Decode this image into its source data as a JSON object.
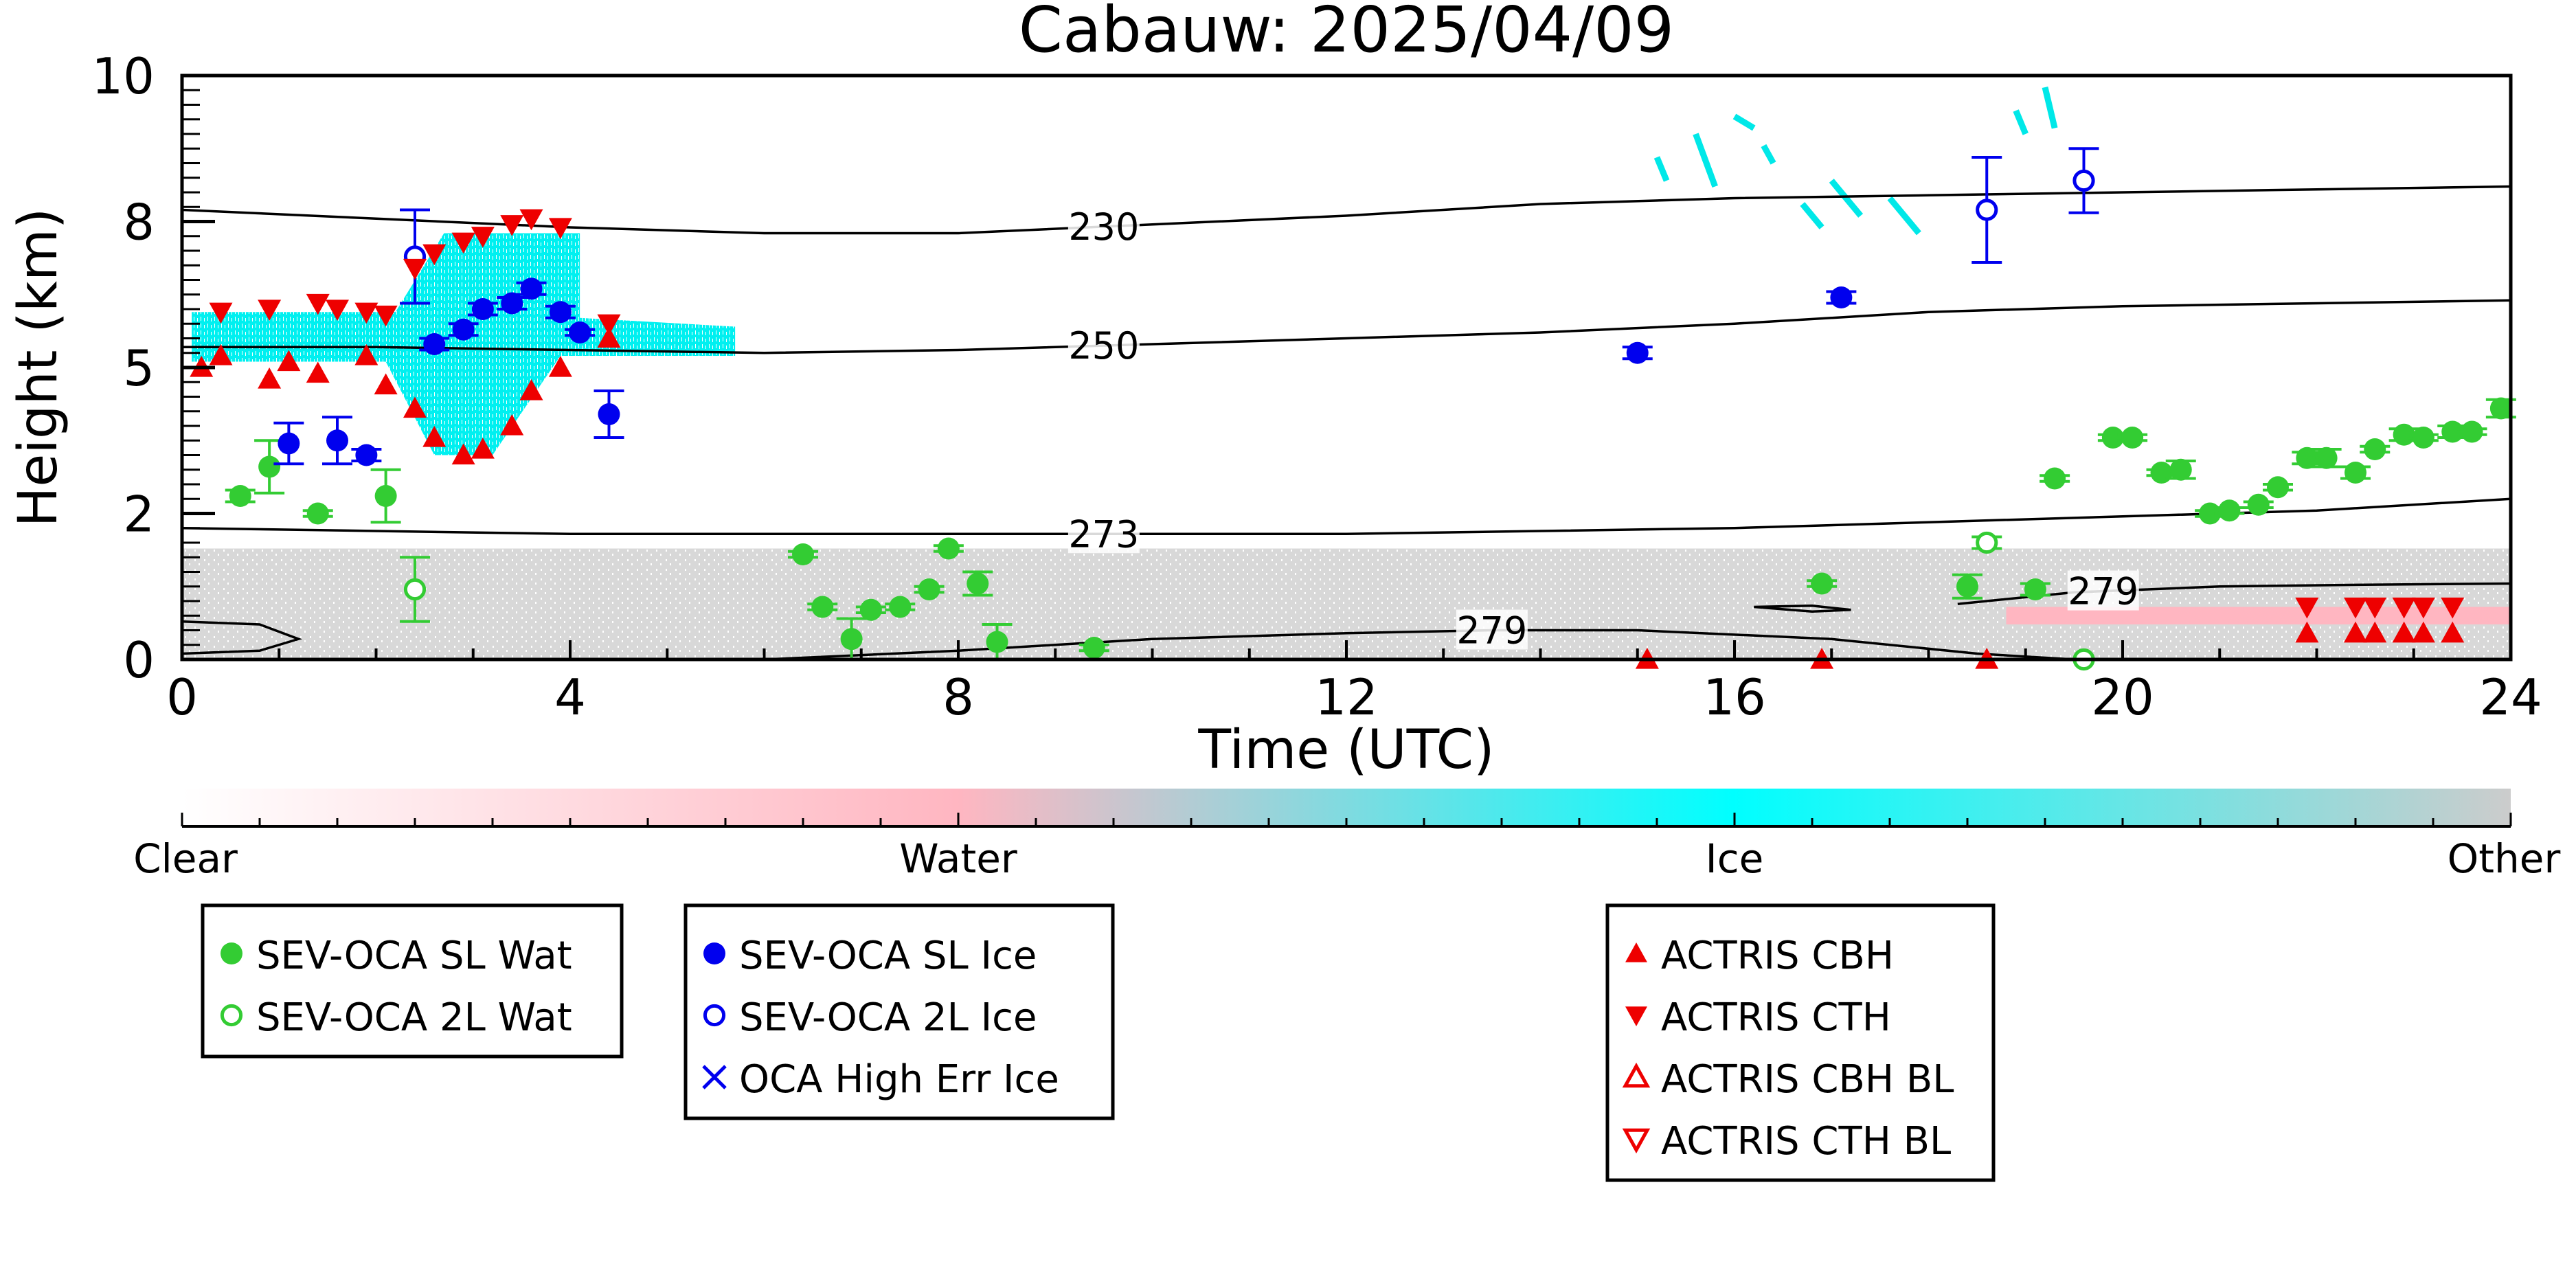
{
  "chart_data": {
    "type": "scatter",
    "title": "Cabauw: 2025/04/09",
    "xlabel": "Time (UTC)",
    "ylabel": "Height (km)",
    "xlim": [
      0,
      24
    ],
    "ylim": [
      0,
      10
    ],
    "x_ticks": [
      "0",
      "4",
      "8",
      "12",
      "16",
      "20",
      "24"
    ],
    "y_ticks": [
      {
        "value": 0,
        "label": "0"
      },
      {
        "value": 2.5,
        "label": "2"
      },
      {
        "value": 5,
        "label": "5"
      },
      {
        "value": 7.5,
        "label": "8"
      },
      {
        "value": 10,
        "label": "10"
      }
    ],
    "colors": {
      "sl_wat": "#33cc33",
      "sl_ice": "#0000ee",
      "actris": "#ee0000",
      "clear": "#ffffff",
      "water": "#ffb6c1",
      "ice": "#00ffff",
      "other": "#cccccc"
    },
    "background": {
      "ice_cloud_1": {
        "x_range": [
          0.1,
          5.7
        ],
        "y_range": [
          3.5,
          7.3
        ]
      },
      "ice_cloud_2": {
        "x_range": [
          15.1,
          19.3
        ],
        "y_range": [
          7.0,
          10.0
        ]
      },
      "other_layer": {
        "x_range": [
          0,
          24
        ],
        "top_km": 1.9
      },
      "water_layer": {
        "x_range": [
          18.8,
          24
        ],
        "y_range": [
          0.6,
          0.9
        ]
      }
    },
    "contours": [
      {
        "label": "230",
        "label_x": 9.5,
        "points": [
          [
            0,
            7.7
          ],
          [
            2,
            7.55
          ],
          [
            4,
            7.4
          ],
          [
            6,
            7.3
          ],
          [
            8,
            7.3
          ],
          [
            10,
            7.45
          ],
          [
            12,
            7.6
          ],
          [
            14,
            7.8
          ],
          [
            16,
            7.9
          ],
          [
            18,
            7.95
          ],
          [
            20,
            8.0
          ],
          [
            22,
            8.05
          ],
          [
            24,
            8.1
          ]
        ]
      },
      {
        "label": "250",
        "label_x": 9.5,
        "points": [
          [
            0,
            5.35
          ],
          [
            2,
            5.35
          ],
          [
            4,
            5.3
          ],
          [
            6,
            5.25
          ],
          [
            8,
            5.3
          ],
          [
            10,
            5.4
          ],
          [
            12,
            5.5
          ],
          [
            14,
            5.6
          ],
          [
            16,
            5.75
          ],
          [
            18,
            5.95
          ],
          [
            20,
            6.05
          ],
          [
            22,
            6.1
          ],
          [
            24,
            6.15
          ]
        ]
      },
      {
        "label": "273",
        "label_x": 9.5,
        "points": [
          [
            0,
            2.25
          ],
          [
            2,
            2.2
          ],
          [
            4,
            2.15
          ],
          [
            6,
            2.15
          ],
          [
            8,
            2.15
          ],
          [
            10,
            2.15
          ],
          [
            12,
            2.15
          ],
          [
            14,
            2.2
          ],
          [
            16,
            2.25
          ],
          [
            18,
            2.35
          ],
          [
            20,
            2.45
          ],
          [
            22,
            2.55
          ],
          [
            24,
            2.75
          ]
        ]
      },
      {
        "label": "279",
        "label_x": 13.5,
        "points": [
          [
            6,
            0.0
          ],
          [
            8,
            0.15
          ],
          [
            10,
            0.35
          ],
          [
            12,
            0.45
          ],
          [
            13.5,
            0.5
          ],
          [
            15,
            0.5
          ],
          [
            17,
            0.35
          ],
          [
            18.5,
            0.1
          ],
          [
            19.5,
            0.0
          ]
        ]
      },
      {
        "label": "279",
        "label_x": 19.8,
        "points": [
          [
            18.3,
            0.95
          ],
          [
            19.5,
            1.15
          ],
          [
            21,
            1.25
          ],
          [
            22.5,
            1.28
          ],
          [
            24,
            1.3
          ]
        ]
      },
      {
        "label": "",
        "label_x": null,
        "points": [
          [
            0,
            0.65
          ],
          [
            0.8,
            0.6
          ],
          [
            1.2,
            0.35
          ],
          [
            0.8,
            0.15
          ],
          [
            0,
            0.1
          ]
        ]
      },
      {
        "label": "",
        "label_x": null,
        "points": [
          [
            16.2,
            0.9
          ],
          [
            16.8,
            0.82
          ],
          [
            17.2,
            0.85
          ],
          [
            16.8,
            0.92
          ],
          [
            16.2,
            0.9
          ]
        ]
      }
    ],
    "series": [
      {
        "name": "SEV-OCA SL Wat",
        "marker": "circle-filled",
        "color": "#33cc33",
        "points": [
          {
            "x": 0.6,
            "y": 2.8,
            "err": 0.1
          },
          {
            "x": 0.9,
            "y": 3.3,
            "err": 0.45
          },
          {
            "x": 1.4,
            "y": 2.5,
            "err": 0.05
          },
          {
            "x": 2.1,
            "y": 2.8,
            "err": 0.45
          },
          {
            "x": 6.4,
            "y": 1.8,
            "err": 0.05
          },
          {
            "x": 6.6,
            "y": 0.9,
            "err": 0.05
          },
          {
            "x": 6.9,
            "y": 0.35,
            "err": 0.35
          },
          {
            "x": 7.1,
            "y": 0.85,
            "err": 0.05
          },
          {
            "x": 7.4,
            "y": 0.9,
            "err": 0.05
          },
          {
            "x": 7.7,
            "y": 1.2,
            "err": 0.05
          },
          {
            "x": 7.9,
            "y": 1.9,
            "err": 0.05
          },
          {
            "x": 8.2,
            "y": 1.3,
            "err": 0.2
          },
          {
            "x": 8.4,
            "y": 0.3,
            "err": 0.3
          },
          {
            "x": 9.4,
            "y": 0.2,
            "err": 0.05
          },
          {
            "x": 16.9,
            "y": 1.3,
            "err": 0.05
          },
          {
            "x": 18.4,
            "y": 1.25,
            "err": 0.2
          },
          {
            "x": 19.1,
            "y": 1.2,
            "err": 0.1
          },
          {
            "x": 19.3,
            "y": 3.1,
            "err": 0.05
          },
          {
            "x": 19.9,
            "y": 3.8,
            "err": 0.05
          },
          {
            "x": 20.1,
            "y": 3.8,
            "err": 0.05
          },
          {
            "x": 20.4,
            "y": 3.2,
            "err": 0.05
          },
          {
            "x": 20.6,
            "y": 3.25,
            "err": 0.15
          },
          {
            "x": 20.9,
            "y": 2.5,
            "err": 0.05
          },
          {
            "x": 21.1,
            "y": 2.55,
            "err": 0.05
          },
          {
            "x": 21.4,
            "y": 2.65,
            "err": 0.05
          },
          {
            "x": 21.6,
            "y": 2.95,
            "err": 0.05
          },
          {
            "x": 21.9,
            "y": 3.45,
            "err": 0.1
          },
          {
            "x": 22.1,
            "y": 3.45,
            "err": 0.15
          },
          {
            "x": 22.4,
            "y": 3.2,
            "err": 0.1
          },
          {
            "x": 22.6,
            "y": 3.6,
            "err": 0.05
          },
          {
            "x": 22.9,
            "y": 3.85,
            "err": 0.1
          },
          {
            "x": 23.1,
            "y": 3.8,
            "err": 0.05
          },
          {
            "x": 23.4,
            "y": 3.9,
            "err": 0.1
          },
          {
            "x": 23.6,
            "y": 3.9,
            "err": 0.05
          },
          {
            "x": 23.9,
            "y": 4.3,
            "err": 0.15
          }
        ]
      },
      {
        "name": "SEV-OCA 2L Wat",
        "marker": "circle-open",
        "color": "#33cc33",
        "points": [
          {
            "x": 2.4,
            "y": 1.2,
            "err": 0.55
          },
          {
            "x": 18.6,
            "y": 2.0,
            "err": 0.1
          },
          {
            "x": 19.6,
            "y": 0.0,
            "err": 0.0
          }
        ]
      },
      {
        "name": "SEV-OCA SL Ice",
        "marker": "circle-filled",
        "color": "#0000ee",
        "points": [
          {
            "x": 1.1,
            "y": 3.7,
            "err": 0.35
          },
          {
            "x": 1.6,
            "y": 3.75,
            "err": 0.4
          },
          {
            "x": 1.9,
            "y": 3.5,
            "err": 0.1
          },
          {
            "x": 2.6,
            "y": 5.4,
            "err": 0.1
          },
          {
            "x": 2.9,
            "y": 5.65,
            "err": 0.1
          },
          {
            "x": 3.1,
            "y": 6.0,
            "err": 0.1
          },
          {
            "x": 3.4,
            "y": 6.1,
            "err": 0.1
          },
          {
            "x": 3.6,
            "y": 6.35,
            "err": 0.1
          },
          {
            "x": 3.9,
            "y": 5.95,
            "err": 0.1
          },
          {
            "x": 4.1,
            "y": 5.6,
            "err": 0.05
          },
          {
            "x": 4.4,
            "y": 4.2,
            "err": 0.4
          },
          {
            "x": 15.0,
            "y": 5.25,
            "err": 0.1
          },
          {
            "x": 17.1,
            "y": 6.2,
            "err": 0.1
          }
        ]
      },
      {
        "name": "SEV-OCA 2L Ice",
        "marker": "circle-open",
        "color": "#0000ee",
        "points": [
          {
            "x": 2.4,
            "y": 6.9,
            "err": 0.8
          },
          {
            "x": 18.6,
            "y": 7.7,
            "err": 0.9
          },
          {
            "x": 19.6,
            "y": 8.2,
            "err": 0.55
          }
        ]
      },
      {
        "name": "OCA High Err Ice",
        "marker": "x",
        "color": "#0000ee",
        "points": []
      },
      {
        "name": "ACTRIS CBH",
        "marker": "triangle-up",
        "color": "#ee0000",
        "points": [
          {
            "x": 0.2,
            "y": 5.0
          },
          {
            "x": 0.4,
            "y": 5.2
          },
          {
            "x": 0.9,
            "y": 4.8
          },
          {
            "x": 1.1,
            "y": 5.1
          },
          {
            "x": 1.4,
            "y": 4.9
          },
          {
            "x": 1.9,
            "y": 5.2
          },
          {
            "x": 2.1,
            "y": 4.7
          },
          {
            "x": 2.4,
            "y": 4.3
          },
          {
            "x": 2.6,
            "y": 3.8
          },
          {
            "x": 2.9,
            "y": 3.5
          },
          {
            "x": 3.1,
            "y": 3.6
          },
          {
            "x": 3.4,
            "y": 4.0
          },
          {
            "x": 3.6,
            "y": 4.6
          },
          {
            "x": 3.9,
            "y": 5.0
          },
          {
            "x": 4.4,
            "y": 5.5
          },
          {
            "x": 15.1,
            "y": 0.0
          },
          {
            "x": 16.9,
            "y": 0.0
          },
          {
            "x": 18.6,
            "y": 0.0
          },
          {
            "x": 21.9,
            "y": 0.45
          },
          {
            "x": 22.4,
            "y": 0.45
          },
          {
            "x": 22.6,
            "y": 0.45
          },
          {
            "x": 22.9,
            "y": 0.45
          },
          {
            "x": 23.1,
            "y": 0.45
          },
          {
            "x": 23.4,
            "y": 0.45
          }
        ]
      },
      {
        "name": "ACTRIS CTH",
        "marker": "triangle-down",
        "color": "#ee0000",
        "points": [
          {
            "x": 0.4,
            "y": 5.95
          },
          {
            "x": 0.9,
            "y": 6.0
          },
          {
            "x": 1.4,
            "y": 6.1
          },
          {
            "x": 1.6,
            "y": 6.0
          },
          {
            "x": 1.9,
            "y": 5.95
          },
          {
            "x": 2.1,
            "y": 5.9
          },
          {
            "x": 2.4,
            "y": 6.7
          },
          {
            "x": 2.6,
            "y": 6.95
          },
          {
            "x": 2.9,
            "y": 7.15
          },
          {
            "x": 3.1,
            "y": 7.25
          },
          {
            "x": 3.4,
            "y": 7.45
          },
          {
            "x": 3.6,
            "y": 7.55
          },
          {
            "x": 3.9,
            "y": 7.4
          },
          {
            "x": 4.4,
            "y": 5.75
          },
          {
            "x": 21.9,
            "y": 0.9
          },
          {
            "x": 22.4,
            "y": 0.9
          },
          {
            "x": 22.6,
            "y": 0.9
          },
          {
            "x": 22.9,
            "y": 0.9
          },
          {
            "x": 23.1,
            "y": 0.9
          },
          {
            "x": 23.4,
            "y": 0.9
          }
        ]
      },
      {
        "name": "ACTRIS CBH BL",
        "marker": "triangle-up-open",
        "color": "#ee0000",
        "points": []
      },
      {
        "name": "ACTRIS CTH BL",
        "marker": "triangle-down-open",
        "color": "#ee0000",
        "points": []
      }
    ],
    "colorbar": {
      "labels": [
        "Clear",
        "Water",
        "Ice",
        "Other"
      ],
      "stops": [
        "#ffffff",
        "#ffb6c1",
        "#00ffff",
        "#cccccc"
      ]
    },
    "legend_groups": [
      {
        "entries": [
          {
            "label": "SEV-OCA SL Wat",
            "marker": "circle-filled",
            "color": "#33cc33"
          },
          {
            "label": "SEV-OCA 2L Wat",
            "marker": "circle-open",
            "color": "#33cc33"
          }
        ]
      },
      {
        "entries": [
          {
            "label": "SEV-OCA SL Ice",
            "marker": "circle-filled",
            "color": "#0000ee"
          },
          {
            "label": "SEV-OCA 2L Ice",
            "marker": "circle-open",
            "color": "#0000ee"
          },
          {
            "label": "OCA High Err Ice",
            "marker": "x",
            "color": "#0000ee"
          }
        ]
      },
      {
        "entries": [
          {
            "label": "ACTRIS CBH",
            "marker": "triangle-up",
            "color": "#ee0000"
          },
          {
            "label": "ACTRIS CTH",
            "marker": "triangle-down",
            "color": "#ee0000"
          },
          {
            "label": "ACTRIS CBH BL",
            "marker": "triangle-up-open",
            "color": "#ee0000"
          },
          {
            "label": "ACTRIS CTH BL",
            "marker": "triangle-down-open",
            "color": "#ee0000"
          }
        ]
      }
    ]
  }
}
